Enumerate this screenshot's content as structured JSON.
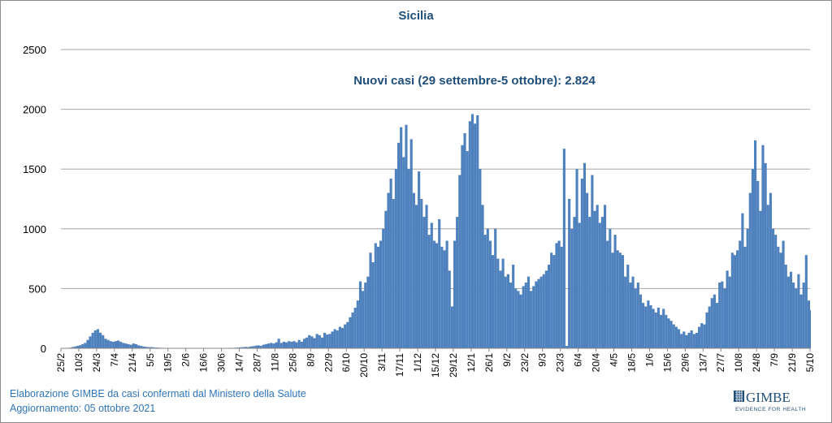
{
  "chart_data": {
    "type": "bar",
    "title": "Sicilia",
    "annotation": "Nuovi casi (29 settembre-5 ottobre): 2.824",
    "xlabel": "",
    "ylabel": "",
    "ylim": [
      0,
      2500
    ],
    "yticks": [
      0,
      500,
      1000,
      1500,
      2000,
      2500
    ],
    "grid": true,
    "legend": "none",
    "bar_color": "#4f81bd",
    "x_start": "25/2/2020",
    "x_step_days": 2,
    "xtick_labels": [
      "25/2",
      "10/3",
      "24/3",
      "7/4",
      "21/4",
      "5/5",
      "19/5",
      "2/6",
      "16/6",
      "30/6",
      "14/7",
      "28/7",
      "11/8",
      "25/8",
      "8/9",
      "22/9",
      "6/10",
      "20/10",
      "3/11",
      "17/11",
      "1/12",
      "15/12",
      "29/12",
      "12/1",
      "26/1",
      "9/2",
      "23/2",
      "9/3",
      "23/3",
      "6/4",
      "20/4",
      "4/5",
      "18/5",
      "1/6",
      "15/6",
      "29/6",
      "13/7",
      "27/7",
      "10/8",
      "24/8",
      "7/9",
      "21/9",
      "5/10"
    ],
    "values": [
      0,
      0,
      2,
      5,
      10,
      15,
      20,
      25,
      35,
      45,
      70,
      100,
      130,
      150,
      160,
      130,
      110,
      80,
      70,
      60,
      55,
      60,
      65,
      55,
      45,
      40,
      35,
      30,
      40,
      35,
      25,
      20,
      15,
      12,
      10,
      10,
      8,
      6,
      5,
      4,
      3,
      3,
      2,
      2,
      2,
      1,
      1,
      1,
      1,
      1,
      1,
      1,
      1,
      1,
      1,
      1,
      1,
      1,
      2,
      1,
      2,
      2,
      2,
      3,
      2,
      3,
      4,
      3,
      5,
      6,
      8,
      10,
      12,
      10,
      15,
      18,
      22,
      25,
      20,
      30,
      35,
      40,
      45,
      40,
      50,
      80,
      45,
      55,
      50,
      60,
      55,
      60,
      50,
      70,
      55,
      80,
      90,
      110,
      100,
      85,
      120,
      110,
      90,
      130,
      115,
      120,
      140,
      160,
      150,
      180,
      170,
      200,
      220,
      260,
      300,
      340,
      400,
      560,
      480,
      550,
      600,
      800,
      720,
      880,
      850,
      900,
      1000,
      1150,
      1300,
      1420,
      1250,
      1500,
      1720,
      1850,
      1600,
      1870,
      1500,
      1750,
      1300,
      1200,
      1480,
      1250,
      1100,
      1200,
      950,
      1050,
      900,
      880,
      1080,
      850,
      820,
      900,
      650,
      350,
      900,
      1100,
      1450,
      1700,
      1800,
      1650,
      1900,
      1960,
      1880,
      1950,
      1500,
      1200,
      950,
      1000,
      900,
      780,
      1000,
      750,
      650,
      750,
      600,
      620,
      550,
      700,
      500,
      480,
      450,
      520,
      550,
      600,
      480,
      520,
      560,
      580,
      600,
      620,
      650,
      700,
      800,
      780,
      880,
      900,
      850,
      1670,
      20,
      1250,
      1000,
      1100,
      1500,
      1050,
      1420,
      1550,
      1300,
      1100,
      1450,
      1150,
      1200,
      1050,
      1100,
      1200,
      900,
      1000,
      800,
      950,
      820,
      800,
      780,
      600,
      700,
      550,
      600,
      500,
      550,
      450,
      380,
      350,
      400,
      360,
      330,
      300,
      340,
      280,
      330,
      280,
      250,
      230,
      200,
      180,
      160,
      120,
      140,
      110,
      130,
      150,
      120,
      130,
      180,
      210,
      200,
      300,
      350,
      420,
      450,
      380,
      550,
      560,
      500,
      650,
      600,
      800,
      780,
      820,
      900,
      1130,
      850,
      1000,
      1300,
      1500,
      1740,
      1400,
      1150,
      1700,
      1550,
      1200,
      1300,
      1000,
      950,
      850,
      800,
      900,
      700,
      600,
      640,
      550,
      500,
      620,
      450,
      550,
      780,
      400,
      320
    ]
  },
  "footer": {
    "source": "Elaborazione GIMBE da casi confermati dal Ministero della Salute",
    "updated": "Aggiornamento: 05 ottobre 2021"
  },
  "logo": {
    "name": "GIMBE",
    "tagline": "EVIDENCE FOR HEALTH",
    "color": "#1f4e79"
  }
}
